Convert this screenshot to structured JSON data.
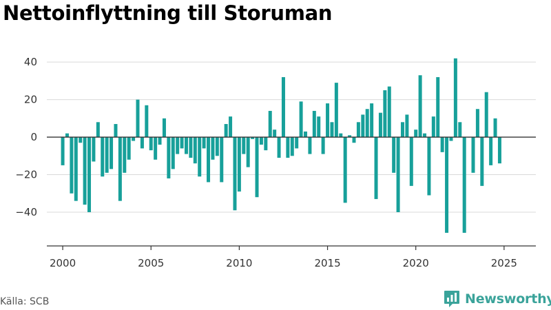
{
  "title": "Nettoinflyttning till Storuman",
  "source": "Källa: SCB",
  "brand": {
    "name": "Newsworthy",
    "logo_icon": "newsworthy-logo-icon"
  },
  "colors": {
    "bar": "#17a09a",
    "grid": "#d9d9d9",
    "axis": "#333333",
    "brand": "#3aa39a"
  },
  "chart_data": {
    "type": "bar",
    "series": [
      {
        "values": [
          -15,
          2,
          -30,
          -34,
          -3,
          -36,
          -40,
          -13,
          8,
          -21,
          -19,
          -17,
          7,
          -34,
          -19,
          -12,
          -2,
          20,
          -6,
          17,
          -7,
          -12,
          -4,
          10,
          -22,
          -17,
          -9,
          -6,
          -9,
          -11,
          -14,
          -21,
          -6,
          -24,
          -12,
          -10,
          -24,
          7,
          11,
          -39,
          -29,
          -9,
          -16,
          -1,
          -32,
          -4,
          -7,
          14,
          4,
          -11,
          32,
          -11,
          -10,
          -6,
          19,
          3,
          -9,
          14,
          11,
          -9,
          18,
          8,
          29,
          2,
          -35,
          1,
          -3,
          8,
          12,
          15,
          18,
          -33,
          13,
          25,
          27,
          -19,
          -40,
          8,
          12,
          -26,
          4,
          33,
          2,
          -31,
          11,
          32,
          -8,
          -51,
          -2,
          42,
          8,
          -51,
          0,
          -19,
          15,
          -26,
          24,
          -15,
          10,
          -14
        ]
      }
    ],
    "x_start": 2000.0,
    "x_step": 0.25,
    "x_ticks": [
      2000,
      2005,
      2010,
      2015,
      2020,
      2025
    ],
    "x_tick_labels": [
      "2000",
      "2005",
      "2010",
      "2015",
      "2020",
      "2025"
    ],
    "xlim": [
      1999.1,
      2026.8
    ],
    "y_ticks": [
      -40,
      -20,
      0,
      20,
      40
    ],
    "y_tick_labels": [
      "−40",
      "−20",
      "0",
      "20",
      "40"
    ],
    "ylim": [
      -58,
      43
    ],
    "grid": true,
    "legend": "none",
    "xlabel": "",
    "ylabel": ""
  }
}
